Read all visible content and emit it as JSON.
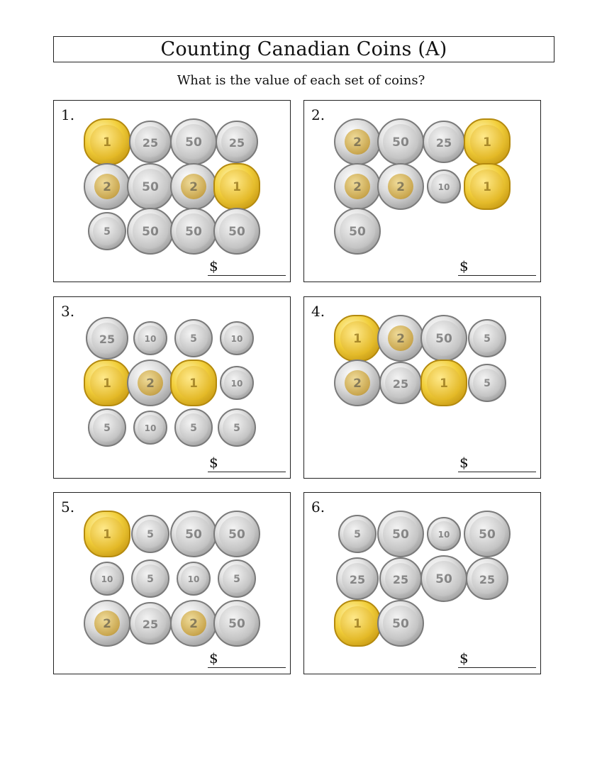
{
  "worksheet": {
    "title": "Counting Canadian Coins (A)",
    "instructions": "What is the value of each set of coins?"
  },
  "palette": {
    "gold": "#f2cf3b",
    "silver": "#d6d6d6",
    "border": "#222222"
  },
  "coin_types": {
    "loonie": {
      "label": "$1 loonie",
      "icon": "loonie-coin-icon"
    },
    "toonie": {
      "label": "$2 toonie",
      "icon": "toonie-coin-icon"
    },
    "half": {
      "label": "50 cents",
      "icon": "fifty-cent-coin-icon"
    },
    "quarter": {
      "label": "25 cents",
      "icon": "quarter-coin-icon"
    },
    "dime": {
      "label": "10 cents",
      "icon": "dime-coin-icon"
    },
    "nickel": {
      "label": "5 cents",
      "icon": "nickel-coin-icon"
    }
  },
  "problems": [
    {
      "number": "1.",
      "currency": "$",
      "answer": "",
      "rows": [
        [
          "loonie",
          "quarter",
          "half",
          "quarter"
        ],
        [
          "toonie",
          "half",
          "toonie",
          "loonie"
        ],
        [
          "nickel",
          "half",
          "half",
          "half"
        ]
      ]
    },
    {
      "number": "2.",
      "currency": "$",
      "answer": "",
      "rows": [
        [
          "toonie",
          "half",
          "quarter",
          "loonie"
        ],
        [
          "toonie",
          "toonie",
          "dime",
          "loonie"
        ],
        [
          "half"
        ]
      ]
    },
    {
      "number": "3.",
      "currency": "$",
      "answer": "",
      "rows": [
        [
          "quarter",
          "dime",
          "nickel",
          "dime"
        ],
        [
          "loonie",
          "toonie",
          "loonie",
          "dime"
        ],
        [
          "nickel",
          "dime",
          "nickel",
          "nickel"
        ]
      ]
    },
    {
      "number": "4.",
      "currency": "$",
      "answer": "",
      "rows": [
        [
          "loonie",
          "toonie",
          "half",
          "nickel"
        ],
        [
          "toonie",
          "quarter",
          "loonie",
          "nickel"
        ]
      ]
    },
    {
      "number": "5.",
      "currency": "$",
      "answer": "",
      "rows": [
        [
          "loonie",
          "nickel",
          "half",
          "half"
        ],
        [
          "dime",
          "nickel",
          "dime",
          "nickel"
        ],
        [
          "toonie",
          "quarter",
          "toonie",
          "half"
        ]
      ]
    },
    {
      "number": "6.",
      "currency": "$",
      "answer": "",
      "rows": [
        [
          "nickel",
          "half",
          "dime",
          "half"
        ],
        [
          "quarter",
          "quarter",
          "half",
          "quarter"
        ],
        [
          "loonie",
          "half"
        ]
      ]
    }
  ]
}
